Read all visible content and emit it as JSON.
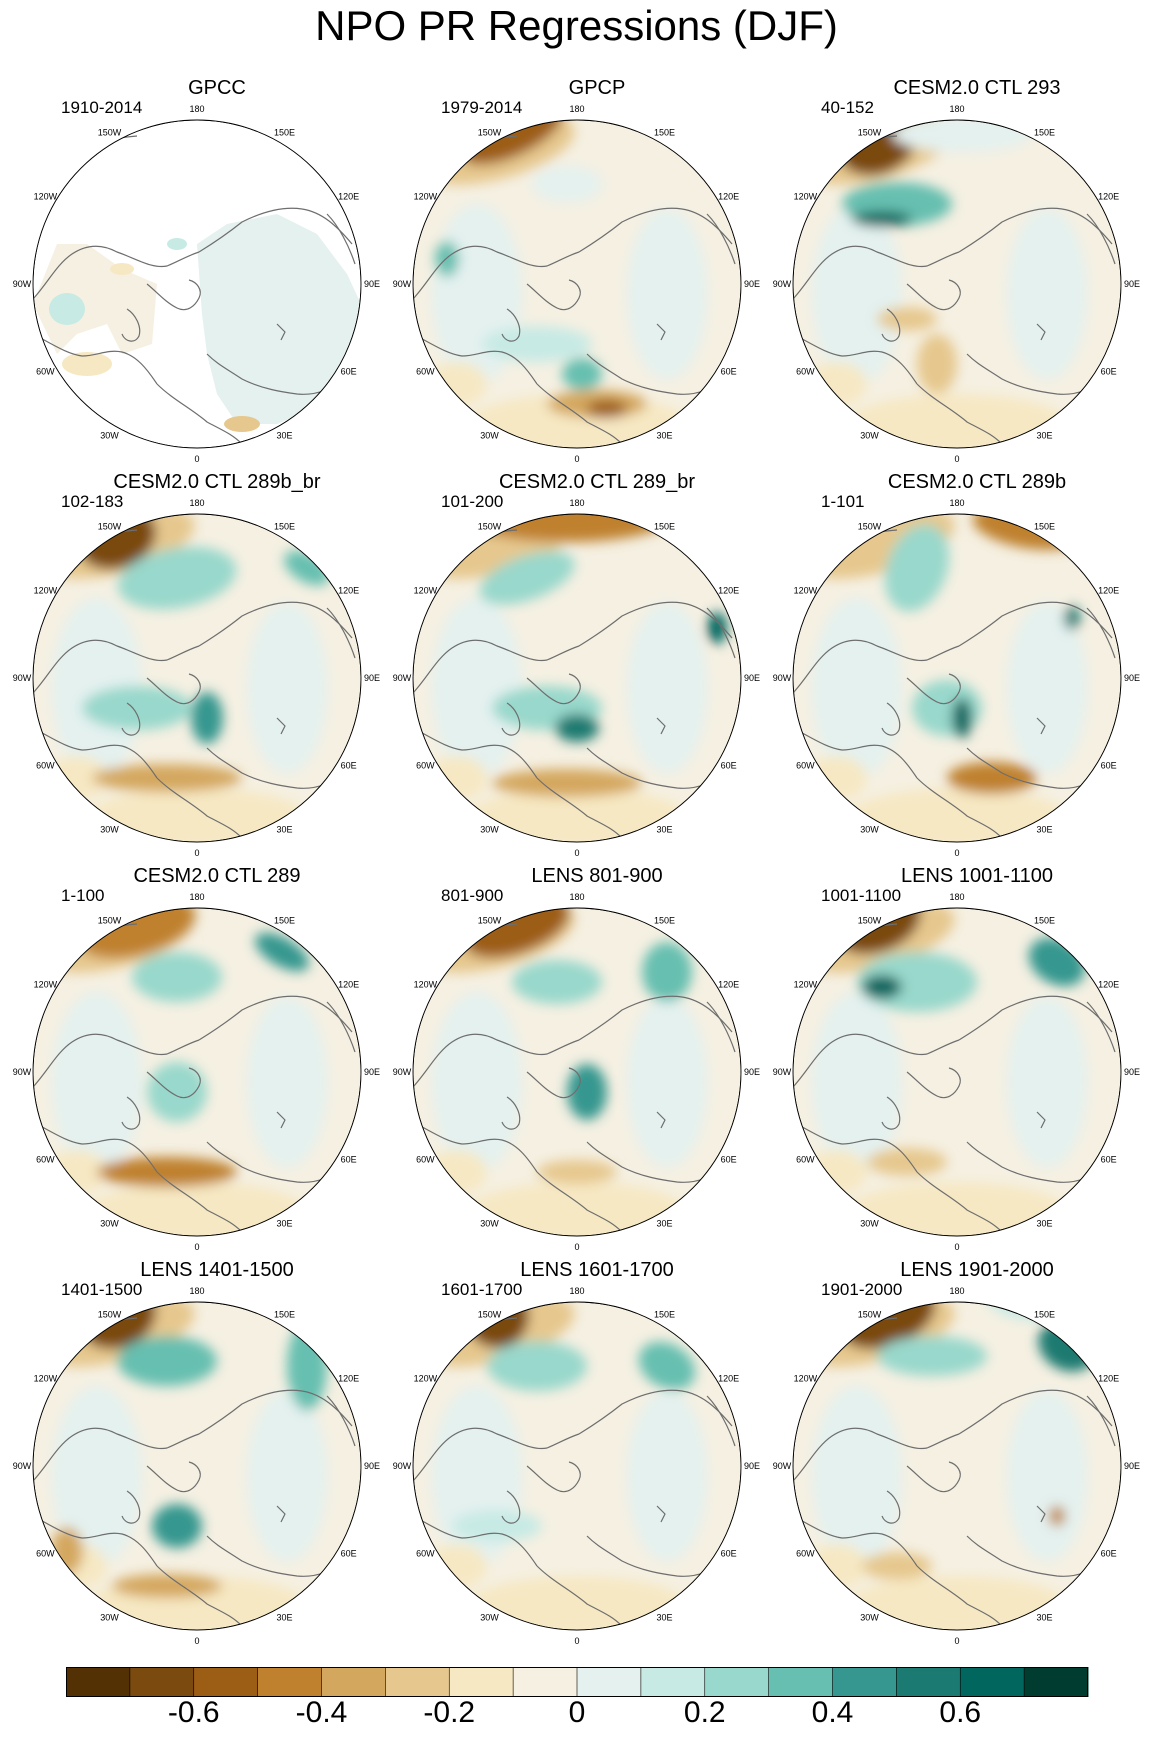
{
  "title": "NPO PR Regressions (DJF)",
  "longitude_labels": [
    "180",
    "150E",
    "120E",
    "90E",
    "60E",
    "30E",
    "0",
    "30W",
    "60W",
    "90W",
    "120W",
    "150W"
  ],
  "palette": [
    "#543005",
    "#7a4a0e",
    "#9c5d15",
    "#bf812d",
    "#d4a75e",
    "#e6c88e",
    "#f6e8c3",
    "#f5f0e2",
    "#e4f1ef",
    "#c7eae5",
    "#99d8cc",
    "#66bfb0",
    "#35978f",
    "#1b7a71",
    "#01665e",
    "#003c30"
  ],
  "colorbar_labels": [
    "-0.6",
    "-0.4",
    "-0.2",
    "0",
    "0.2",
    "0.4",
    "0.6"
  ],
  "panels": [
    {
      "title": "GPCC",
      "years": "1910-2014"
    },
    {
      "title": "GPCP",
      "years": "1979-2014"
    },
    {
      "title": "CESM2.0 CTL 293",
      "years": "40-152"
    },
    {
      "title": "CESM2.0 CTL 289b_br",
      "years": "102-183"
    },
    {
      "title": "CESM2.0 CTL 289_br",
      "years": "101-200"
    },
    {
      "title": "CESM2.0 CTL 289b",
      "years": "1-101"
    },
    {
      "title": "CESM2.0 CTL 289",
      "years": "1-100"
    },
    {
      "title": "LENS 801-900",
      "years": "801-900"
    },
    {
      "title": "LENS 1001-1100",
      "years": "1001-1100"
    },
    {
      "title": "LENS 1401-1500",
      "years": "1401-1500"
    },
    {
      "title": "LENS 1601-1700",
      "years": "1601-1700"
    },
    {
      "title": "LENS 1901-2000",
      "years": "1901-2000"
    }
  ]
}
